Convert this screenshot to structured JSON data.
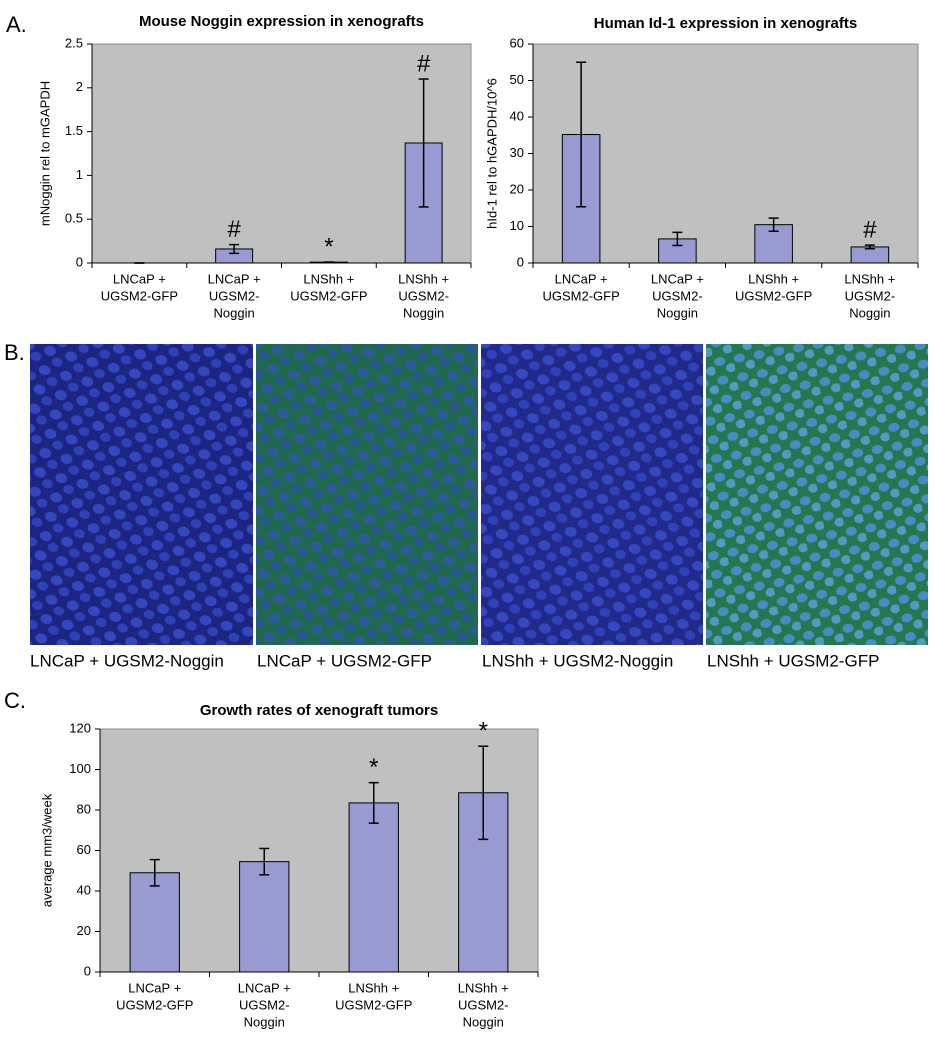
{
  "panel_labels": [
    "A.",
    "B.",
    "C."
  ],
  "micrographs": [
    "LNCaP + UGSM2-Noggin",
    "LNCaP + UGSM2-GFP",
    "LNShh + UGSM2-Noggin",
    "LNShh + UGSM2-GFP"
  ],
  "chart_data": [
    {
      "type": "bar",
      "title": "Mouse Noggin expression in xenografts",
      "ylabel": "mNoggin rel to mGAPDH",
      "categories": [
        [
          "LNCaP +",
          "UGSM2-GFP"
        ],
        [
          "LNCaP +",
          "UGSM2-",
          "Noggin"
        ],
        [
          "LNShh +",
          "UGSM2-GFP"
        ],
        [
          "LNShh +",
          "UGSM2-",
          "Noggin"
        ]
      ],
      "values": [
        0,
        0.16,
        0.01,
        1.37
      ],
      "errors": [
        0,
        0.05,
        0,
        0.73
      ],
      "annotations": [
        null,
        "#",
        "*",
        "#"
      ],
      "color": "#9a9ad2",
      "background": "#c0c0c0",
      "ylim": [
        0,
        2.5
      ],
      "yticks": [
        0,
        0.5,
        1,
        1.5,
        2,
        2.5
      ],
      "grid": false
    },
    {
      "type": "bar",
      "title": "Human Id-1 expression in xenografts",
      "ylabel": "hId-1 rel to hGAPDH/10^6",
      "categories": [
        [
          "LNCaP +",
          "UGSM2-GFP"
        ],
        [
          "LNCaP +",
          "UGSM2-",
          "Noggin"
        ],
        [
          "LNShh +",
          "UGSM2-GFP"
        ],
        [
          "LNShh +",
          "UGSM2-",
          "Noggin"
        ]
      ],
      "values": [
        35.2,
        6.6,
        10.5,
        4.4
      ],
      "errors": [
        19.8,
        1.8,
        1.8,
        0.5
      ],
      "annotations": [
        null,
        null,
        null,
        "#"
      ],
      "color": "#9a9ad2",
      "background": "#c0c0c0",
      "ylim": [
        0,
        60
      ],
      "yticks": [
        0,
        10,
        20,
        30,
        40,
        50,
        60
      ],
      "grid": false
    },
    {
      "type": "bar",
      "title": "Growth rates of xenograft tumors",
      "ylabel": "average mm3/week",
      "categories": [
        [
          "LNCaP +",
          "UGSM2-GFP"
        ],
        [
          "LNCaP +",
          "UGSM2-",
          "Noggin"
        ],
        [
          "LNShh +",
          "UGSM2-GFP"
        ],
        [
          "LNShh +",
          "UGSM2-",
          "Noggin"
        ]
      ],
      "values": [
        49,
        54.5,
        83.5,
        88.5
      ],
      "errors": [
        6.5,
        6.5,
        10,
        23
      ],
      "annotations": [
        null,
        null,
        "*",
        "*"
      ],
      "color": "#9a9ad2",
      "background": "#c0c0c0",
      "ylim": [
        0,
        120
      ],
      "yticks": [
        0,
        20,
        40,
        60,
        80,
        100,
        120
      ],
      "grid": false
    }
  ]
}
